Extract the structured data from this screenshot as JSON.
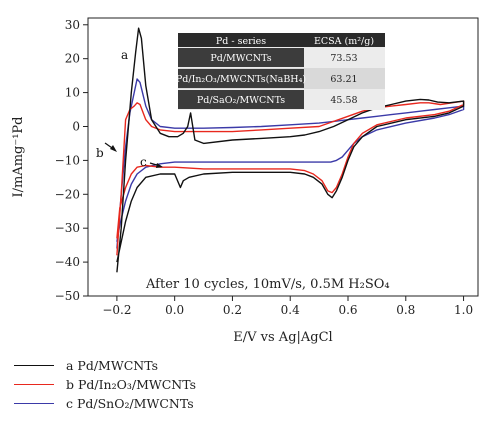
{
  "chart_data": {
    "type": "line",
    "xlabel": "E/V vs Ag|AgCl",
    "ylabel": "I/mAmg⁻¹Pd",
    "xlim": [
      -0.3,
      1.05
    ],
    "ylim": [
      -50,
      32
    ],
    "xticks": [
      -0.2,
      0.0,
      0.2,
      0.4,
      0.6,
      0.8,
      1.0
    ],
    "xtick_labels": [
      "−0.2",
      "0.0",
      "0.2",
      "0.4",
      "0.6",
      "0.8",
      "1.0"
    ],
    "yticks": [
      -50,
      -40,
      -30,
      -20,
      -10,
      0,
      10,
      20,
      30
    ],
    "ytick_labels": [
      "−50",
      "−40",
      "−30",
      "−20",
      "−10",
      "0",
      "10",
      "20",
      "30"
    ],
    "grid": false,
    "annotation": "After 10 cycles, 10mV/s, 0.5M H₂SO₄",
    "curve_labels": [
      "a",
      "b",
      "c"
    ],
    "series": [
      {
        "name": "a Pd/MWCNTs",
        "color": "#111111",
        "x": [
          -0.2,
          -0.185,
          -0.17,
          -0.15,
          -0.135,
          -0.125,
          -0.115,
          -0.1,
          -0.08,
          -0.05,
          -0.02,
          0.01,
          0.03,
          0.045,
          0.055,
          0.07,
          0.1,
          0.2,
          0.3,
          0.4,
          0.45,
          0.5,
          0.55,
          0.6,
          0.65,
          0.7,
          0.75,
          0.8,
          0.85,
          0.88,
          0.91,
          0.95,
          1.0,
          1.0,
          0.95,
          0.9,
          0.8,
          0.7,
          0.65,
          0.62,
          0.6,
          0.58,
          0.56,
          0.545,
          0.53,
          0.51,
          0.48,
          0.45,
          0.4,
          0.3,
          0.2,
          0.1,
          0.05,
          0.03,
          0.02,
          0.0,
          -0.05,
          -0.1,
          -0.13,
          -0.15,
          -0.17,
          -0.19,
          -0.2
        ],
        "y": [
          -43,
          -30,
          -10,
          10,
          22,
          29,
          26,
          12,
          2,
          -2,
          -3,
          -3,
          -2,
          0,
          4,
          -4,
          -5,
          -4,
          -3.5,
          -3,
          -2.5,
          -1.5,
          0,
          2,
          4,
          5.5,
          6.5,
          7.5,
          8,
          7.8,
          7.2,
          7,
          7.5,
          6,
          4,
          3,
          2,
          0,
          -3,
          -6,
          -10,
          -15,
          -19,
          -21,
          -20,
          -17,
          -15,
          -14,
          -13.5,
          -13.5,
          -13.5,
          -14,
          -15,
          -16,
          -18,
          -14,
          -14,
          -15,
          -18,
          -22,
          -28,
          -36,
          -40
        ]
      },
      {
        "name": "b Pd/In₂O₃/MWCNTs",
        "color": "#e8281e",
        "x": [
          -0.2,
          -0.185,
          -0.17,
          -0.155,
          -0.14,
          -0.13,
          -0.12,
          -0.1,
          -0.08,
          -0.05,
          0.0,
          0.1,
          0.2,
          0.3,
          0.4,
          0.5,
          0.55,
          0.6,
          0.65,
          0.7,
          0.75,
          0.8,
          0.85,
          0.88,
          0.92,
          0.96,
          1.0,
          1.0,
          0.95,
          0.9,
          0.8,
          0.7,
          0.65,
          0.62,
          0.6,
          0.58,
          0.56,
          0.545,
          0.53,
          0.51,
          0.48,
          0.45,
          0.4,
          0.3,
          0.2,
          0.1,
          0.0,
          -0.05,
          -0.1,
          -0.13,
          -0.15,
          -0.17,
          -0.19,
          -0.2
        ],
        "y": [
          -38,
          -20,
          2,
          5,
          6,
          7,
          6.5,
          2,
          0,
          -1,
          -1.5,
          -1.5,
          -1.5,
          -1,
          -0.5,
          0,
          1.5,
          3,
          4.5,
          5.5,
          6,
          6.5,
          7,
          7,
          6.5,
          7,
          7.5,
          6.5,
          4.5,
          3.5,
          2.5,
          0.5,
          -2,
          -5,
          -9,
          -14,
          -18,
          -19.5,
          -19,
          -16,
          -14,
          -13,
          -12.5,
          -12.5,
          -12.5,
          -12.5,
          -12,
          -12,
          -11.5,
          -12,
          -14,
          -18,
          -24,
          -33
        ]
      },
      {
        "name": "c Pd/SnO₂/MWCNTs",
        "color": "#3b3aa8",
        "x": [
          -0.2,
          -0.185,
          -0.17,
          -0.155,
          -0.14,
          -0.13,
          -0.12,
          -0.1,
          -0.08,
          -0.05,
          0.0,
          0.1,
          0.2,
          0.3,
          0.4,
          0.5,
          0.55,
          0.6,
          0.65,
          0.7,
          0.75,
          0.8,
          0.85,
          0.9,
          0.95,
          1.0,
          1.0,
          0.95,
          0.9,
          0.8,
          0.7,
          0.65,
          0.62,
          0.6,
          0.58,
          0.56,
          0.54,
          0.52,
          0.5,
          0.45,
          0.4,
          0.3,
          0.2,
          0.1,
          0.0,
          -0.05,
          -0.1,
          -0.13,
          -0.15,
          -0.17,
          -0.19,
          -0.2
        ],
        "y": [
          -36,
          -20,
          -6,
          4,
          10,
          14,
          13,
          6,
          2,
          0,
          -0.5,
          -0.5,
          -0.3,
          0,
          0.5,
          1,
          1.5,
          2,
          2.5,
          3,
          3.5,
          4,
          4.5,
          5,
          5.5,
          6,
          5,
          3.5,
          2.5,
          1,
          -1,
          -3,
          -5,
          -7,
          -9,
          -10,
          -10.5,
          -10.5,
          -10.5,
          -10.5,
          -10.5,
          -10.5,
          -10.5,
          -10.5,
          -10.5,
          -11,
          -12,
          -14,
          -17,
          -22,
          -29,
          -34
        ]
      }
    ],
    "table": {
      "headers": [
        "Pd - series",
        "ECSA (m²/g)"
      ],
      "rows": [
        [
          "Pd/MWCNTs",
          "73.53"
        ],
        [
          "Pd/In₂O₃/MWCNTs(NaBH₄)",
          "63.21"
        ],
        [
          "Pd/SaO₂/MWCNTs",
          "45.58"
        ]
      ]
    }
  },
  "legend": [
    {
      "label": "a Pd/MWCNTs",
      "color": "#111111"
    },
    {
      "label": "b Pd/In₂O₃/MWCNTs",
      "color": "#e8281e"
    },
    {
      "label": "c Pd/SnO₂/MWCNTs",
      "color": "#3b3aa8"
    }
  ]
}
